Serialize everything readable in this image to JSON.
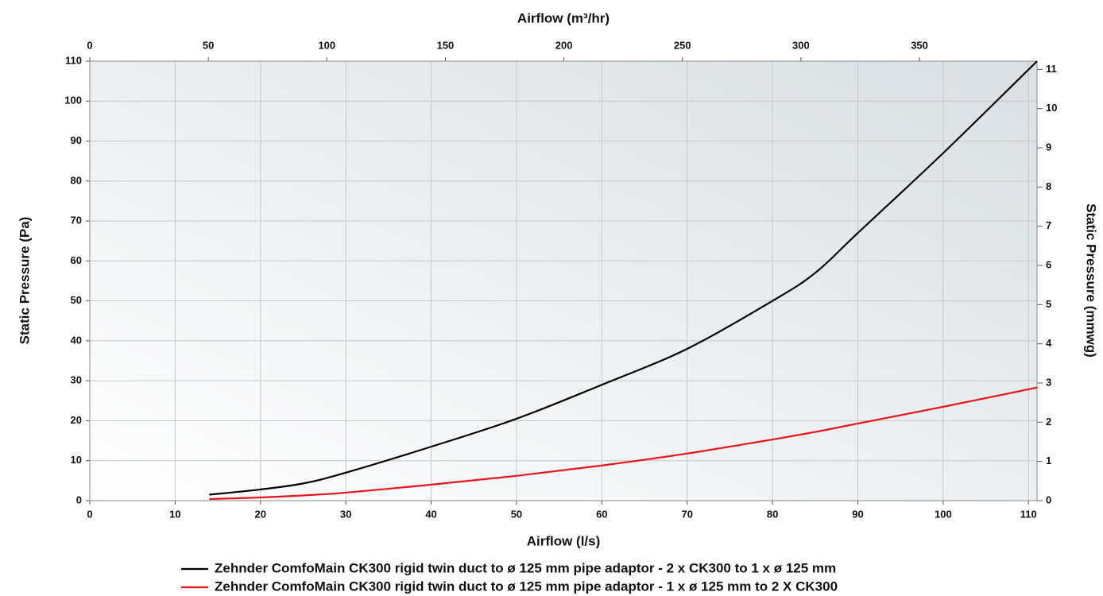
{
  "chart_data": {
    "type": "line",
    "x_label": "Airflow (l/s)",
    "x2_label": "Airflow (m³/hr)",
    "y_label": "Static Pressure (Pa)",
    "y2_label": "Static Pressure (mmwg)",
    "x": [
      14,
      20,
      25,
      30,
      40,
      50,
      60,
      70,
      80,
      85,
      90,
      100,
      111
    ],
    "series": [
      {
        "name": "Zehnder ComfoMain CK300 rigid twin duct to ø 125 mm pipe adaptor - 2 x CK300 to 1 x ø 125 mm",
        "color": "#000000",
        "values": [
          1.5,
          2.8,
          4.3,
          7,
          13.5,
          20.5,
          29,
          38,
          50,
          57,
          67,
          87,
          110
        ]
      },
      {
        "name": "Zehnder ComfoMain CK300 rigid twin duct to ø 125 mm pipe adaptor - 1 x ø 125 mm to 2 X CK300",
        "color": "#e8141b",
        "values": [
          0.4,
          0.8,
          1.3,
          2,
          4,
          6.2,
          8.8,
          11.8,
          15.3,
          17.2,
          19.3,
          23.5,
          28.3
        ]
      }
    ],
    "xlim": [
      0,
      111
    ],
    "xticks": [
      0,
      10,
      20,
      30,
      40,
      50,
      60,
      70,
      80,
      90,
      100,
      110
    ],
    "x2lim": [
      0,
      399.6
    ],
    "x2ticks": [
      0,
      50,
      100,
      150,
      200,
      250,
      300,
      350
    ],
    "ylim": [
      0,
      110
    ],
    "yticks": [
      0,
      10,
      20,
      30,
      40,
      50,
      60,
      70,
      80,
      90,
      100,
      110
    ],
    "y2lim": [
      0,
      11.21
    ],
    "y2ticks": [
      0,
      1,
      2,
      3,
      4,
      5,
      6,
      7,
      8,
      9,
      10,
      11
    ],
    "grid": true
  }
}
